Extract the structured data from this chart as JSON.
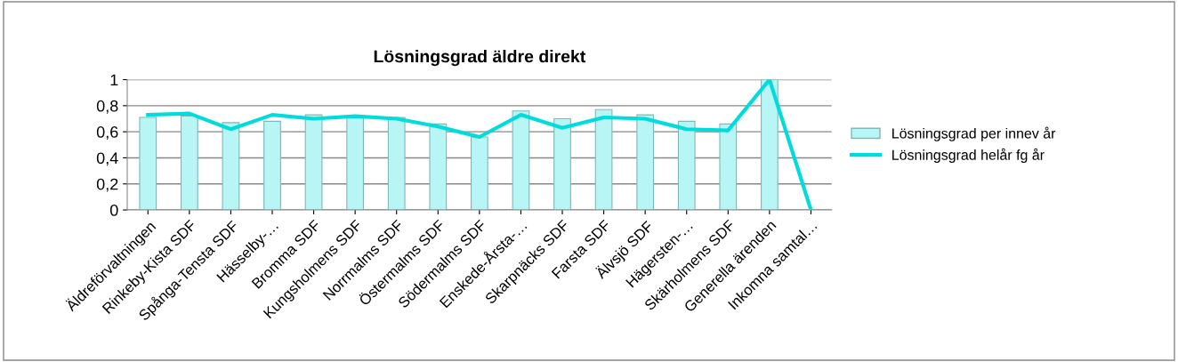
{
  "chart_data": {
    "type": "bar",
    "title": "Lösningsgrad äldre direkt",
    "categories": [
      "Äldreförvaltningen",
      "Rinkeby-Kista SDF",
      "Spånga-Tensta SDF",
      "Hässelby-…",
      "Bromma SDF",
      "Kungsholmens SDF",
      "Norrmalms SDF",
      "Östermalms SDF",
      "Södermalms SDF",
      "Enskede-Årsta-…",
      "Skarpnäcks SDF",
      "Farsta SDF",
      "Älvsjö SDF",
      "Hägersten-…",
      "Skärholmens SDF",
      "Generella ärenden",
      "Inkomna samtal…"
    ],
    "series": [
      {
        "name": "Lösningsgrad per innev år",
        "color": "#b8f6f6",
        "values": [
          0.71,
          0.72,
          0.67,
          0.68,
          0.73,
          0.72,
          0.71,
          0.66,
          0.56,
          0.76,
          0.7,
          0.77,
          0.73,
          0.68,
          0.66,
          1.0,
          null
        ]
      },
      {
        "name": "Lösningsgrad helår fg år",
        "type": "line",
        "color": "#00dcdc",
        "values": [
          0.73,
          0.74,
          0.62,
          0.73,
          0.7,
          0.72,
          0.7,
          0.64,
          0.56,
          0.73,
          0.63,
          0.71,
          0.7,
          0.62,
          0.61,
          1.0,
          0
        ]
      }
    ],
    "ylim": [
      0,
      1
    ],
    "yticks": [
      {
        "value": 0,
        "label": "0"
      },
      {
        "value": 0.2,
        "label": "0,2"
      },
      {
        "value": 0.4,
        "label": "0,4"
      },
      {
        "value": 0.6,
        "label": "0,6"
      },
      {
        "value": 0.8,
        "label": "0,8"
      },
      {
        "value": 1,
        "label": "1"
      }
    ],
    "grid": "y",
    "legend": "right"
  }
}
